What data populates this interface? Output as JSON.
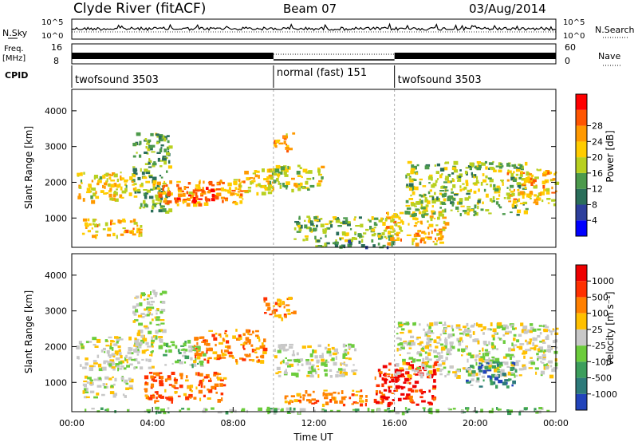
{
  "header": {
    "site": "Clyde River (fitACF)",
    "beam": "Beam 07",
    "date": "03/Aug/2014"
  },
  "top_panel": {
    "nsky_label": "N.Sky",
    "nsky_ticks": [
      "10^5",
      "10^0"
    ],
    "nsearch_label": "N.Search",
    "nsearch_ticks": [
      "10^5",
      "10^0"
    ],
    "freq_label": "Freq.",
    "freq_unit": "[MHz]",
    "freq_ticks": [
      "16",
      "8"
    ],
    "nave_label": "Nave",
    "nave_ticks": [
      "60",
      "0"
    ],
    "cpid_label": "CPID",
    "cpid_segments": [
      {
        "label": "twofsound 3503",
        "start": 0,
        "end": 10
      },
      {
        "label": "normal (fast) 151",
        "start": 10,
        "end": 16
      },
      {
        "label": "twofsound 3503",
        "start": 16,
        "end": 24
      }
    ]
  },
  "chart_data": [
    {
      "type": "heatmap",
      "name": "power",
      "ylabel": "Slant Range [km]",
      "yticks": [
        1000,
        2000,
        3000,
        4000
      ],
      "ylim": [
        180,
        4600
      ],
      "xlim": [
        0,
        24
      ],
      "colorbar": {
        "label": "Power [dB]",
        "ticks": [
          4,
          8,
          12,
          16,
          20,
          24,
          28
        ],
        "range": [
          0,
          30
        ],
        "colors": [
          "#0000ff",
          "#2d3f9c",
          "#2a6e5a",
          "#4c9a4c",
          "#b8d020",
          "#ffcc00",
          "#ff9900",
          "#ff5500",
          "#ff0000"
        ]
      },
      "regions": [
        {
          "x": [
            0.2,
            3.2
          ],
          "y": [
            1500,
            2300
          ],
          "level": 18
        },
        {
          "x": [
            3.0,
            4.8
          ],
          "y": [
            1200,
            3400
          ],
          "level": 12
        },
        {
          "x": [
            4.0,
            8.5
          ],
          "y": [
            1400,
            2100
          ],
          "level": 22
        },
        {
          "x": [
            5.0,
            7.0
          ],
          "y": [
            1500,
            1900
          ],
          "level": 26
        },
        {
          "x": [
            8.0,
            10.0
          ],
          "y": [
            1700,
            2400
          ],
          "level": 18
        },
        {
          "x": [
            10.0,
            11.0
          ],
          "y": [
            2900,
            3400
          ],
          "level": 22
        },
        {
          "x": [
            9.8,
            12.5
          ],
          "y": [
            1800,
            2500
          ],
          "level": 16
        },
        {
          "x": [
            11.0,
            15.8
          ],
          "y": [
            400,
            1100
          ],
          "level": 14
        },
        {
          "x": [
            15.5,
            18.5
          ],
          "y": [
            300,
            1200
          ],
          "level": 20
        },
        {
          "x": [
            16.5,
            22.5
          ],
          "y": [
            1100,
            2600
          ],
          "level": 14
        },
        {
          "x": [
            21.5,
            24.0
          ],
          "y": [
            1400,
            2400
          ],
          "level": 20
        },
        {
          "x": [
            0.5,
            3.5
          ],
          "y": [
            500,
            1000
          ],
          "level": 20
        },
        {
          "x": [
            12.0,
            16.0
          ],
          "y": [
            200,
            400
          ],
          "level": 10
        }
      ]
    },
    {
      "type": "heatmap",
      "name": "velocity",
      "xlabel": "Time UT",
      "xticks": [
        "00:00",
        "04:00",
        "08:00",
        "12:00",
        "16:00",
        "20:00",
        "00:00"
      ],
      "xtick_values": [
        0,
        4,
        8,
        12,
        16,
        20,
        24
      ],
      "ylabel": "Slant Range [km]",
      "yticks": [
        1000,
        2000,
        3000,
        4000
      ],
      "ylim": [
        180,
        4600
      ],
      "xlim": [
        0,
        24
      ],
      "colorbar": {
        "label": "Velocity [m s⁻¹]",
        "ticks": [
          "1000",
          "500",
          "100",
          "25",
          "-25",
          "-100",
          "-500",
          "-1000"
        ],
        "colors": [
          "#2244bb",
          "#2d7a7a",
          "#3c9e5c",
          "#6ccc3c",
          "#c8c8c8",
          "#ffc000",
          "#ff8000",
          "#ff3000",
          "#ee0000"
        ]
      },
      "regions": [
        {
          "x": [
            0.2,
            4.0
          ],
          "y": [
            1400,
            2300
          ],
          "cat": "grey"
        },
        {
          "x": [
            3.0,
            4.5
          ],
          "y": [
            2000,
            3600
          ],
          "cat": "grey"
        },
        {
          "x": [
            4.5,
            6.5
          ],
          "y": [
            1500,
            2200
          ],
          "cat": "green"
        },
        {
          "x": [
            6.0,
            9.5
          ],
          "y": [
            1600,
            2500
          ],
          "cat": "orange"
        },
        {
          "x": [
            9.5,
            11.0
          ],
          "y": [
            2800,
            3400
          ],
          "cat": "orange"
        },
        {
          "x": [
            10.0,
            14.0
          ],
          "y": [
            1200,
            2100
          ],
          "cat": "grey"
        },
        {
          "x": [
            10.5,
            15.5
          ],
          "y": [
            400,
            800
          ],
          "cat": "orange"
        },
        {
          "x": [
            15.0,
            18.0
          ],
          "y": [
            400,
            1600
          ],
          "cat": "red"
        },
        {
          "x": [
            16.0,
            24.0
          ],
          "y": [
            1200,
            2700
          ],
          "cat": "grey"
        },
        {
          "x": [
            19.5,
            22.0
          ],
          "y": [
            900,
            1600
          ],
          "cat": "teal"
        },
        {
          "x": [
            3.5,
            7.5
          ],
          "y": [
            500,
            1300
          ],
          "cat": "orange"
        },
        {
          "x": [
            0.5,
            3.0
          ],
          "y": [
            600,
            1200
          ],
          "cat": "grey"
        },
        {
          "x": [
            0.0,
            24.0
          ],
          "y": [
            180,
            320
          ],
          "cat": "green"
        }
      ]
    }
  ]
}
